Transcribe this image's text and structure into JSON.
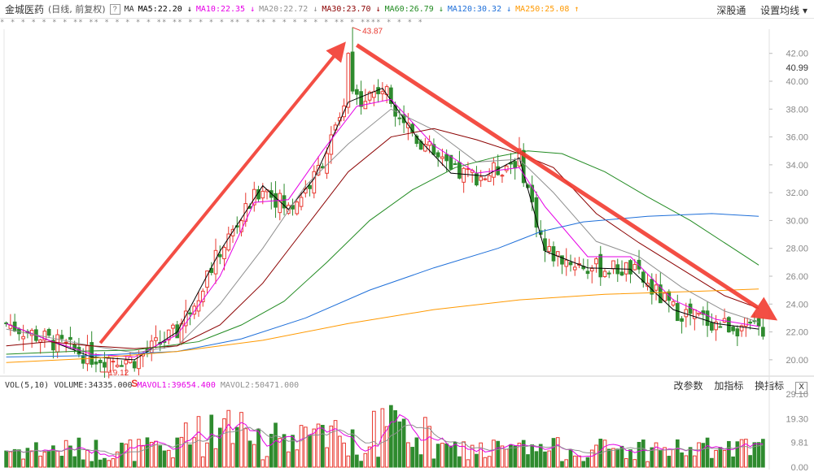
{
  "header": {
    "stock_name": "金城医药",
    "period": "(日线, 前复权)",
    "help_icon": "?",
    "ma_label": "MA",
    "ma_items": [
      {
        "text": "MA5:22.20",
        "arrow": "↓",
        "color": "#000000"
      },
      {
        "text": "MA10:22.35",
        "arrow": "↓",
        "color": "#e600e6"
      },
      {
        "text": "MA20:22.72",
        "arrow": "↓",
        "color": "#909090"
      },
      {
        "text": "MA30:23.70",
        "arrow": "↓",
        "color": "#8b0000"
      },
      {
        "text": "MA60:26.79",
        "arrow": "↓",
        "color": "#228b22"
      },
      {
        "text": "MA120:30.32",
        "arrow": "↓",
        "color": "#1e6fd9"
      },
      {
        "text": "MA250:25.08",
        "arrow": "↑",
        "color": "#ff9900"
      }
    ],
    "right_links": [
      "深股通",
      "设置均线 ▾"
    ]
  },
  "star_row": "*  *   *    *  *   *  *   ** **  *  *  *    *  *   ** ** *   *  *  *  ** *   **  *   *        * * *    *    **   *       **** *   *  *  *",
  "volume_header": {
    "label": "VOL(5,10)",
    "volume": "VOLUME:34335.000",
    "mavol1": "MAVOL1:39654.400",
    "mavol2": "MAVOL2:50471.000",
    "right_links": [
      "改参数",
      "加指标",
      "换指标"
    ],
    "close": "X"
  },
  "chart_data": {
    "type": "candlestick",
    "price_axis_ticks": [
      "42.00",
      "40.00",
      "38.00",
      "36.00",
      "34.00",
      "32.00",
      "30.00",
      "28.00",
      "26.00",
      "24.00",
      "22.00",
      "20.00"
    ],
    "current_price_label": "40.99",
    "volume_axis_ticks": [
      "29.10",
      "19.30",
      "9.81",
      "0.00"
    ],
    "high_annotation": "43.87",
    "low_annotation": "19.12",
    "signal_mark": "S",
    "price_ylim": [
      19,
      43.5
    ],
    "volume_unit_max": 29.1,
    "ma_lines": {
      "MA5": [
        [
          0,
          22.6
        ],
        [
          10,
          21.4
        ],
        [
          20,
          20.2
        ],
        [
          30,
          20.0
        ],
        [
          40,
          22.0
        ],
        [
          50,
          27.8
        ],
        [
          60,
          32.5
        ],
        [
          66,
          30.8
        ],
        [
          72,
          33.0
        ],
        [
          80,
          38.5
        ],
        [
          88,
          39.5
        ],
        [
          96,
          36.0
        ],
        [
          104,
          33.4
        ],
        [
          112,
          33.2
        ],
        [
          120,
          34.5
        ],
        [
          126,
          27.8
        ],
        [
          136,
          26.6
        ],
        [
          146,
          26.5
        ],
        [
          156,
          23.6
        ],
        [
          166,
          22.6
        ],
        [
          176,
          22.2
        ]
      ],
      "MA10": [
        [
          0,
          22.6
        ],
        [
          10,
          21.4
        ],
        [
          20,
          20.4
        ],
        [
          30,
          20.2
        ],
        [
          40,
          21.8
        ],
        [
          50,
          26.0
        ],
        [
          58,
          31.3
        ],
        [
          66,
          31.5
        ],
        [
          74,
          35.0
        ],
        [
          82,
          38.2
        ],
        [
          90,
          38.7
        ],
        [
          100,
          35.4
        ],
        [
          110,
          33.4
        ],
        [
          120,
          33.8
        ],
        [
          126,
          31.0
        ],
        [
          136,
          27.4
        ],
        [
          146,
          27.4
        ],
        [
          156,
          24.3
        ],
        [
          166,
          22.9
        ],
        [
          176,
          22.4
        ]
      ],
      "MA20": [
        [
          0,
          22.2
        ],
        [
          10,
          21.6
        ],
        [
          20,
          21.0
        ],
        [
          30,
          20.5
        ],
        [
          40,
          21.0
        ],
        [
          50,
          24.0
        ],
        [
          60,
          28.0
        ],
        [
          70,
          32.5
        ],
        [
          80,
          35.5
        ],
        [
          90,
          38.0
        ],
        [
          100,
          36.5
        ],
        [
          110,
          34.2
        ],
        [
          120,
          34.4
        ],
        [
          128,
          32.0
        ],
        [
          138,
          28.5
        ],
        [
          148,
          27.4
        ],
        [
          158,
          25.2
        ],
        [
          168,
          23.5
        ],
        [
          176,
          22.7
        ]
      ],
      "MA30": [
        [
          0,
          21.0
        ],
        [
          10,
          21.3
        ],
        [
          20,
          21.0
        ],
        [
          30,
          20.8
        ],
        [
          40,
          21.0
        ],
        [
          50,
          22.5
        ],
        [
          60,
          25.5
        ],
        [
          70,
          29.5
        ],
        [
          80,
          33.5
        ],
        [
          90,
          36.0
        ],
        [
          100,
          36.6
        ],
        [
          110,
          35.8
        ],
        [
          120,
          34.8
        ],
        [
          128,
          33.8
        ],
        [
          138,
          30.5
        ],
        [
          148,
          28.4
        ],
        [
          158,
          26.5
        ],
        [
          168,
          24.6
        ],
        [
          176,
          23.7
        ]
      ],
      "MA60": [
        [
          0,
          20.4
        ],
        [
          15,
          20.6
        ],
        [
          30,
          20.7
        ],
        [
          45,
          21.3
        ],
        [
          55,
          22.5
        ],
        [
          65,
          24.2
        ],
        [
          75,
          27.0
        ],
        [
          85,
          30.0
        ],
        [
          95,
          32.2
        ],
        [
          105,
          33.8
        ],
        [
          115,
          34.6
        ],
        [
          122,
          35.0
        ],
        [
          130,
          34.8
        ],
        [
          140,
          33.5
        ],
        [
          150,
          31.7
        ],
        [
          160,
          30.0
        ],
        [
          170,
          28.0
        ],
        [
          176,
          26.8
        ]
      ],
      "MA120": [
        [
          0,
          20.2
        ],
        [
          20,
          20.3
        ],
        [
          40,
          20.6
        ],
        [
          55,
          21.5
        ],
        [
          70,
          23.0
        ],
        [
          85,
          25.0
        ],
        [
          100,
          26.6
        ],
        [
          115,
          28.0
        ],
        [
          125,
          29.2
        ],
        [
          135,
          29.9
        ],
        [
          150,
          30.3
        ],
        [
          165,
          30.5
        ],
        [
          176,
          30.3
        ]
      ],
      "MA250": [
        [
          0,
          19.8
        ],
        [
          20,
          20.1
        ],
        [
          40,
          20.6
        ],
        [
          60,
          21.4
        ],
        [
          80,
          22.6
        ],
        [
          100,
          23.6
        ],
        [
          120,
          24.3
        ],
        [
          140,
          24.7
        ],
        [
          160,
          24.9
        ],
        [
          176,
          25.08
        ]
      ]
    },
    "trend_arrows": [
      {
        "from": [
          22,
          21.2
        ],
        "to": [
          78,
          42.3
        ]
      },
      {
        "from": [
          82,
          42.6
        ],
        "to": [
          178,
          23.3
        ]
      }
    ]
  }
}
